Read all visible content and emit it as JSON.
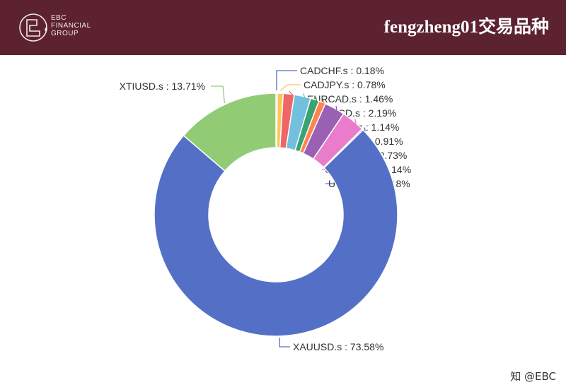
{
  "header": {
    "logo_lines": [
      "EBC",
      "FINANCIAL",
      "GROUP"
    ],
    "title": "fengzheng01交易品种",
    "bg_color": "#5c2230"
  },
  "watermark": "知 @EBC",
  "chart_data": {
    "type": "pie",
    "donut": true,
    "title": "",
    "label_format": "{name} : {value}%",
    "slices": [
      {
        "name": "CADCHF.s",
        "value": 0.18,
        "color": "#5470c6"
      },
      {
        "name": "CADJPY.s",
        "value": 0.78,
        "color": "#fac858"
      },
      {
        "name": "EURCAD.s",
        "value": 1.46,
        "color": "#ee6666"
      },
      {
        "name": "EURUSD.s",
        "value": 2.19,
        "color": "#73c0de"
      },
      {
        "name": "GBPAUD.s",
        "value": 1.14,
        "color": "#3ba272"
      },
      {
        "name": "GBPNZD.s",
        "value": 0.91,
        "color": "#fc8452"
      },
      {
        "name": "GBPUSD.s",
        "value": 2.73,
        "color": "#9a60b4"
      },
      {
        "name": "USDCNH.s",
        "value": 3.14,
        "color": "#ea7ccc"
      },
      {
        "name": "USDJPY.s",
        "value": 0.18,
        "color": "#5470c6"
      },
      {
        "name": "XAUUSD.s",
        "value": 73.58,
        "color": "#5470c6"
      },
      {
        "name": "XTIUSD.s",
        "value": 13.71,
        "color": "#91cc75"
      }
    ]
  }
}
